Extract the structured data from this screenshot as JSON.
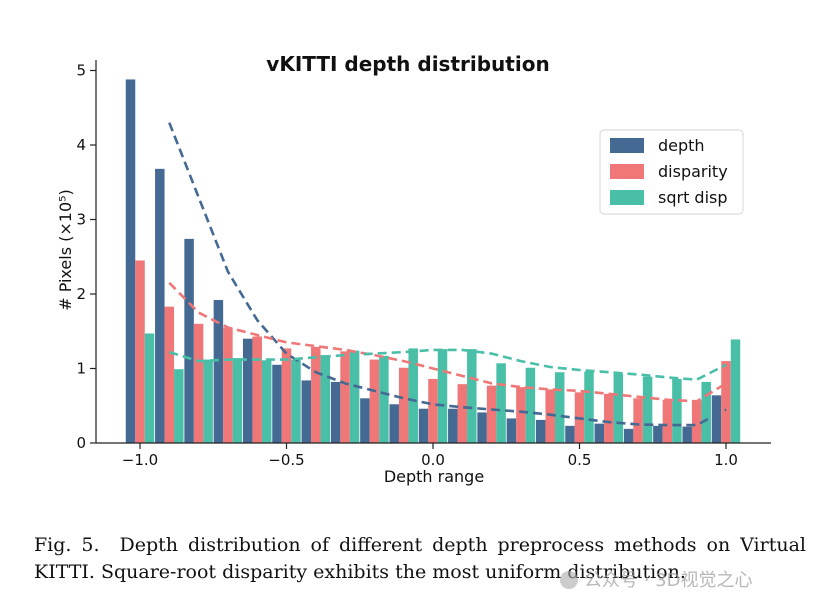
{
  "chart_data": {
    "type": "bar",
    "title": "vKITTI depth distribution",
    "xlabel": "Depth range",
    "ylabel": "# Pixels (×10⁵)",
    "xlim": [
      -1.1,
      1.15
    ],
    "ylim": [
      0,
      5.1
    ],
    "xticks": [
      -1.0,
      -0.5,
      0.0,
      0.5,
      1.0
    ],
    "xtick_labels": [
      "−1.0",
      "−0.5",
      "0.0",
      "0.5",
      "1.0"
    ],
    "yticks": [
      0,
      1,
      2,
      3,
      4,
      5
    ],
    "ytick_labels": [
      "0",
      "1",
      "2",
      "3",
      "4",
      "5"
    ],
    "legend_position": "upper-right",
    "bin_centers": [
      -1.0,
      -0.9,
      -0.8,
      -0.7,
      -0.6,
      -0.5,
      -0.4,
      -0.3,
      -0.2,
      -0.1,
      0.0,
      0.1,
      0.2,
      0.3,
      0.4,
      0.5,
      0.6,
      0.7,
      0.8,
      0.9,
      1.0
    ],
    "series": [
      {
        "name": "depth",
        "color": "#446a93",
        "values": [
          4.88,
          3.68,
          2.74,
          1.92,
          1.4,
          1.05,
          0.84,
          0.82,
          0.6,
          0.52,
          0.46,
          0.46,
          0.41,
          0.33,
          0.31,
          0.23,
          0.26,
          0.19,
          0.23,
          0.22,
          0.64
        ]
      },
      {
        "name": "disparity",
        "color": "#ef7777",
        "values": [
          2.45,
          1.83,
          1.6,
          1.55,
          1.43,
          1.27,
          1.29,
          1.23,
          1.12,
          1.01,
          0.86,
          0.79,
          0.77,
          0.75,
          0.72,
          0.68,
          0.66,
          0.6,
          0.58,
          0.57,
          1.1
        ]
      },
      {
        "name": "sqrt disp",
        "color": "#4abfa8",
        "values": [
          1.47,
          0.99,
          1.12,
          1.14,
          1.11,
          1.12,
          1.18,
          1.24,
          1.17,
          1.27,
          1.26,
          1.26,
          1.07,
          1.01,
          0.95,
          0.96,
          0.93,
          0.89,
          0.86,
          0.82,
          1.39
        ]
      }
    ],
    "trend_lines": [
      {
        "name": "depth trend",
        "color": "#446a93",
        "x": [
          -0.9,
          -0.8,
          -0.7,
          -0.6,
          -0.5,
          -0.4,
          -0.3,
          -0.2,
          -0.1,
          0.0,
          0.1,
          0.2,
          0.3,
          0.4,
          0.5,
          0.6,
          0.7,
          0.8,
          0.9,
          1.0
        ],
        "y": [
          4.3,
          3.3,
          2.3,
          1.65,
          1.2,
          0.95,
          0.8,
          0.7,
          0.6,
          0.52,
          0.48,
          0.45,
          0.42,
          0.38,
          0.33,
          0.28,
          0.25,
          0.24,
          0.24,
          0.45
        ]
      },
      {
        "name": "disparity trend",
        "color": "#ef7777",
        "x": [
          -0.9,
          -0.8,
          -0.7,
          -0.6,
          -0.5,
          -0.4,
          -0.3,
          -0.2,
          -0.1,
          0.0,
          0.1,
          0.2,
          0.3,
          0.4,
          0.5,
          0.6,
          0.7,
          0.8,
          0.9,
          1.0
        ],
        "y": [
          2.15,
          1.75,
          1.55,
          1.45,
          1.35,
          1.3,
          1.25,
          1.18,
          1.1,
          1.0,
          0.9,
          0.8,
          0.75,
          0.72,
          0.7,
          0.66,
          0.62,
          0.58,
          0.56,
          0.8
        ]
      },
      {
        "name": "sqrt disp trend",
        "color": "#4abfa8",
        "x": [
          -0.9,
          -0.8,
          -0.7,
          -0.6,
          -0.5,
          -0.4,
          -0.3,
          -0.2,
          -0.1,
          0.0,
          0.1,
          0.2,
          0.3,
          0.4,
          0.5,
          0.6,
          0.7,
          0.8,
          0.9,
          1.0
        ],
        "y": [
          1.22,
          1.1,
          1.12,
          1.12,
          1.12,
          1.15,
          1.18,
          1.2,
          1.22,
          1.25,
          1.25,
          1.2,
          1.1,
          1.02,
          0.98,
          0.95,
          0.92,
          0.88,
          0.85,
          1.05
        ]
      }
    ]
  },
  "caption": {
    "label": "Fig. 5.",
    "text": "Depth distribution of different depth preprocess methods on Virtual KITTI. Square-root disparity exhibits the most uniform distribution."
  },
  "watermark": {
    "text": "公众号 · 3D视觉之心"
  }
}
